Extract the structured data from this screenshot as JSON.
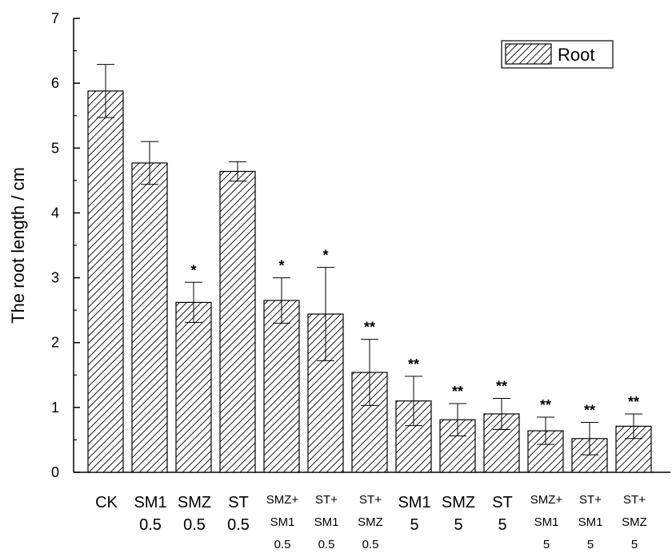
{
  "chart_data": {
    "type": "bar",
    "title": "",
    "xlabel": "",
    "ylabel": "The root length / cm",
    "ylim": [
      0,
      7
    ],
    "yticks": [
      "0",
      "1",
      "2",
      "3",
      "4",
      "5",
      "6",
      "7"
    ],
    "grid": false,
    "legend_position": "top-right",
    "bar_fill": "diagonal-hatch",
    "colors": {
      "bar_stroke": "#000000",
      "hatch": "#000000",
      "background": "#ffffff"
    },
    "categories": [
      [
        "CK"
      ],
      [
        "SM1",
        "0.5"
      ],
      [
        "SMZ",
        "0.5"
      ],
      [
        "ST",
        "0.5"
      ],
      [
        "SMZ+",
        "SM1",
        "0.5"
      ],
      [
        "ST+",
        "SM1",
        "0.5"
      ],
      [
        "ST+",
        "SMZ",
        "0.5"
      ],
      [
        "SM1",
        "5"
      ],
      [
        "SMZ",
        "5"
      ],
      [
        "ST",
        "5"
      ],
      [
        "SMZ+",
        "SM1",
        "5"
      ],
      [
        "ST+",
        "SM1",
        "5"
      ],
      [
        "ST+",
        "SMZ",
        "5"
      ]
    ],
    "series": [
      {
        "name": "Root",
        "values": [
          5.88,
          4.77,
          2.62,
          4.64,
          2.65,
          2.44,
          1.54,
          1.1,
          0.81,
          0.9,
          0.64,
          0.52,
          0.71
        ],
        "errors": [
          0.41,
          0.33,
          0.31,
          0.15,
          0.35,
          0.72,
          0.51,
          0.38,
          0.25,
          0.24,
          0.21,
          0.25,
          0.19
        ],
        "significance": [
          "",
          "",
          "*",
          "",
          "*",
          "*",
          "**",
          "**",
          "**",
          "**",
          "**",
          "**",
          "**"
        ]
      }
    ]
  }
}
